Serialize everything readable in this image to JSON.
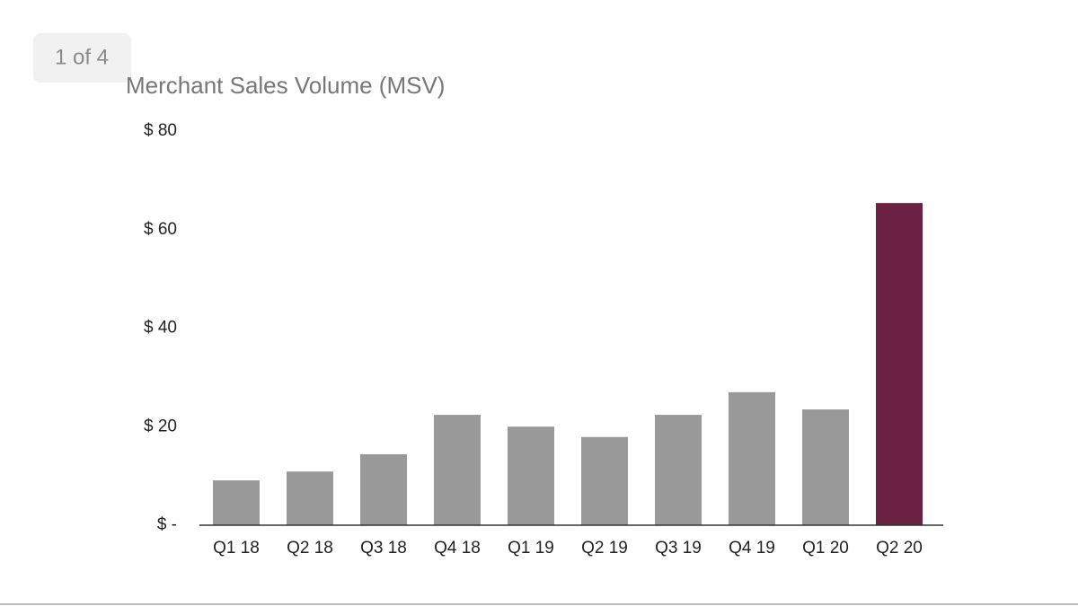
{
  "badge": "1 of 4",
  "chart_data": {
    "type": "bar",
    "title": "Merchant Sales Volume (MSV)",
    "categories": [
      "Q1 18",
      "Q2 18",
      "Q3 18",
      "Q4 18",
      "Q1 19",
      "Q2 19",
      "Q3 19",
      "Q4 19",
      "Q1 20",
      "Q2 20"
    ],
    "values": [
      9.1,
      10.9,
      14.4,
      22.4,
      20.0,
      17.9,
      22.4,
      27.0,
      23.5,
      65.4
    ],
    "colors": [
      "#999999",
      "#999999",
      "#999999",
      "#999999",
      "#999999",
      "#999999",
      "#999999",
      "#999999",
      "#999999",
      "#6b2142"
    ],
    "ylim": [
      0,
      80
    ],
    "yticks": [
      {
        "value": 0,
        "label": "$ -"
      },
      {
        "value": 20,
        "label": "$ 20"
      },
      {
        "value": 40,
        "label": "$ 40"
      },
      {
        "value": 60,
        "label": "$ 60"
      },
      {
        "value": 80,
        "label": "$ 80"
      }
    ],
    "grid": false
  }
}
